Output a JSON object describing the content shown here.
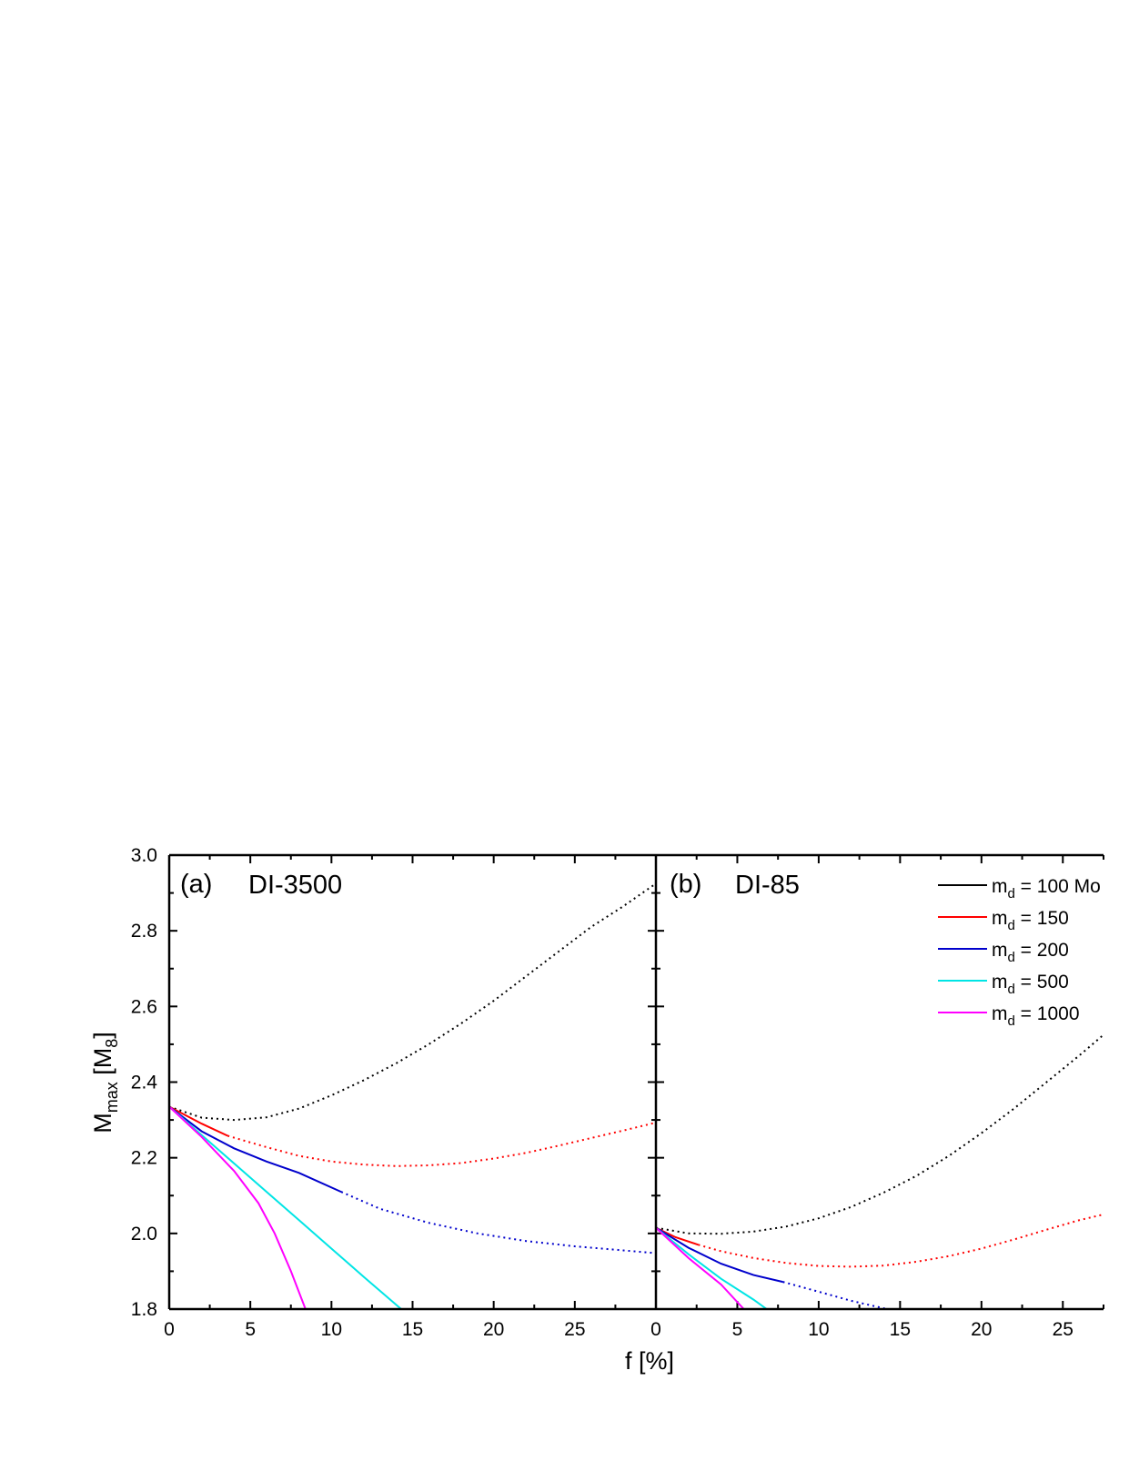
{
  "chart_data": {
    "type": "line",
    "xlabel": "f [%]",
    "ylabel": "M",
    "ylabel_sub": "max",
    "ylabel_unit_open": " [M",
    "ylabel_unit_sub": "8",
    "ylabel_unit_close": "]",
    "ylim": [
      1.8,
      3.0
    ],
    "yticks": [
      "1.8",
      "2.0",
      "2.2",
      "2.4",
      "2.6",
      "2.8",
      "3.0"
    ],
    "xticks_a": [
      "0",
      "5",
      "10",
      "15",
      "20",
      "25"
    ],
    "xticks_b": [
      "0",
      "5",
      "10",
      "15",
      "20",
      "25"
    ],
    "xlim_a": [
      0,
      30
    ],
    "xlim_b": [
      0,
      27.5
    ],
    "legend": [
      {
        "name_prefix": "m",
        "name_sub": "d",
        "text": " = 100 Mo",
        "color": "#000000"
      },
      {
        "name_prefix": "m",
        "name_sub": "d",
        "text": " = 150",
        "color": "#ff0000"
      },
      {
        "name_prefix": "m",
        "name_sub": "d",
        "text": " = 200",
        "color": "#0000cc"
      },
      {
        "name_prefix": "m",
        "name_sub": "d",
        "text": " = 500",
        "color": "#00e5e5"
      },
      {
        "name_prefix": "m",
        "name_sub": "d",
        "text": " = 1000",
        "color": "#ff00ff"
      }
    ],
    "panels": [
      {
        "label": "(a)",
        "title": "DI-3500",
        "series": [
          {
            "color": "#000000",
            "solid_until": 0,
            "x": [
              0,
              2,
              4,
              6,
              8,
              10,
              12,
              14,
              16,
              18,
              20,
              22,
              24,
              26,
              28,
              30
            ],
            "y": [
              2.335,
              2.306,
              2.3,
              2.307,
              2.33,
              2.365,
              2.405,
              2.45,
              2.5,
              2.555,
              2.615,
              2.68,
              2.745,
              2.81,
              2.865,
              2.925
            ]
          },
          {
            "color": "#ff0000",
            "solid_until": 3.6,
            "x": [
              0,
              2,
              3.6,
              6,
              8,
              10,
              12,
              14,
              16,
              18,
              20,
              22,
              24,
              26,
              28,
              30
            ],
            "y": [
              2.335,
              2.29,
              2.258,
              2.228,
              2.205,
              2.19,
              2.182,
              2.178,
              2.18,
              2.186,
              2.198,
              2.213,
              2.232,
              2.252,
              2.272,
              2.293
            ]
          },
          {
            "color": "#0000cc",
            "solid_until": 10.6,
            "x": [
              0,
              2,
              4,
              6,
              8,
              10.6,
              13,
              16,
              19,
              22,
              25,
              28,
              30
            ],
            "y": [
              2.335,
              2.27,
              2.225,
              2.19,
              2.16,
              2.11,
              2.065,
              2.028,
              2.0,
              1.98,
              1.966,
              1.955,
              1.948
            ]
          },
          {
            "color": "#00e5e5",
            "solid_until": 14.3,
            "x": [
              0,
              2,
              4,
              6,
              8,
              10,
              12,
              14.3
            ],
            "y": [
              2.335,
              2.26,
              2.185,
              2.11,
              2.035,
              1.96,
              1.885,
              1.8
            ]
          },
          {
            "color": "#ff00ff",
            "solid_until": 8.4,
            "x": [
              0,
              2,
              4,
              5.5,
              6.5,
              7.5,
              8.4
            ],
            "y": [
              2.335,
              2.255,
              2.165,
              2.08,
              2.0,
              1.9,
              1.8
            ]
          }
        ]
      },
      {
        "label": "(b)",
        "title": "DI-85",
        "series": [
          {
            "color": "#000000",
            "solid_until": 0,
            "x": [
              0,
              2,
              4,
              6,
              8,
              10,
              12,
              14,
              16,
              18,
              20,
              22,
              24,
              26,
              27.5
            ],
            "y": [
              2.015,
              2.0,
              1.999,
              2.005,
              2.018,
              2.04,
              2.07,
              2.108,
              2.152,
              2.205,
              2.265,
              2.33,
              2.4,
              2.47,
              2.525
            ]
          },
          {
            "color": "#ff0000",
            "solid_until": 2.6,
            "x": [
              0,
              1.2,
              2.6,
              4,
              6,
              8,
              10,
              12,
              14,
              16,
              18,
              20,
              22,
              24,
              26,
              27.5
            ],
            "y": [
              2.015,
              1.99,
              1.97,
              1.953,
              1.935,
              1.922,
              1.914,
              1.912,
              1.915,
              1.925,
              1.94,
              1.96,
              1.984,
              2.01,
              2.035,
              2.05
            ]
          },
          {
            "color": "#0000cc",
            "solid_until": 7.8,
            "x": [
              0,
              2,
              4,
              6,
              7.8,
              10,
              12,
              14.2
            ],
            "y": [
              2.015,
              1.962,
              1.92,
              1.89,
              1.872,
              1.846,
              1.822,
              1.8
            ]
          },
          {
            "color": "#00e5e5",
            "solid_until": 6.8,
            "x": [
              0,
              2,
              4,
              6,
              6.8
            ],
            "y": [
              2.015,
              1.945,
              1.88,
              1.825,
              1.8
            ]
          },
          {
            "color": "#ff00ff",
            "solid_until": 5.4,
            "x": [
              0,
              2,
              4,
              5.4
            ],
            "y": [
              2.015,
              1.935,
              1.865,
              1.8
            ]
          }
        ]
      }
    ]
  }
}
